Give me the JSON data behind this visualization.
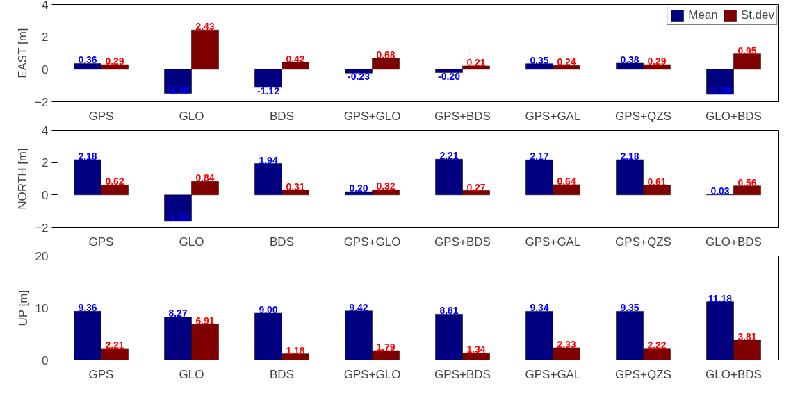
{
  "chart_data": [
    {
      "type": "bar",
      "ylabel": "EAST [m]",
      "categories": [
        "GPS",
        "GLO",
        "BDS",
        "GPS+GLO",
        "GPS+BDS",
        "GPS+GAL",
        "GPS+QZS",
        "GLO+BDS"
      ],
      "ylim": [
        -2,
        4
      ],
      "yticks": [
        -2,
        0,
        2,
        4
      ],
      "legend": "top right",
      "grid": false,
      "series": [
        {
          "name": "Mean",
          "color": "#000080",
          "values": [
            0.36,
            -1.49,
            -1.12,
            -0.23,
            -0.2,
            0.35,
            0.38,
            -1.55
          ],
          "value_labels": [
            "0.36",
            "-1.49",
            "-1.12",
            "-0.23",
            "-0.20",
            "0.35",
            "0.38",
            "-1.55"
          ]
        },
        {
          "name": "St.dev",
          "color": "#800000",
          "values": [
            0.29,
            2.43,
            0.42,
            0.68,
            0.21,
            0.24,
            0.29,
            0.95
          ],
          "value_labels": [
            "0.29",
            "2.43",
            "0.42",
            "0.68",
            "0.21",
            "0.24",
            "0.29",
            "0.95"
          ]
        }
      ]
    },
    {
      "type": "bar",
      "ylabel": "NORTH [m]",
      "categories": [
        "GPS",
        "GLO",
        "BDS",
        "GPS+GLO",
        "GPS+BDS",
        "GPS+GAL",
        "GPS+QZS",
        "GLO+BDS"
      ],
      "ylim": [
        -2,
        4
      ],
      "yticks": [
        -2,
        0,
        2,
        4
      ],
      "grid": false,
      "series": [
        {
          "color": "#000080",
          "values": [
            2.18,
            -1.63,
            1.94,
            0.2,
            2.21,
            2.17,
            2.18,
            0.03
          ],
          "value_labels": [
            "2.18",
            "-1.63",
            "1.94",
            "0.20",
            "2.21",
            "2.17",
            "2.18",
            "0.03"
          ]
        },
        {
          "color": "#800000",
          "values": [
            0.62,
            0.84,
            0.31,
            0.32,
            0.27,
            0.64,
            0.61,
            0.56
          ],
          "value_labels": [
            "0.62",
            "0.84",
            "0.31",
            "0.32",
            "0.27",
            "0.64",
            "0.61",
            "0.56"
          ]
        }
      ]
    },
    {
      "type": "bar",
      "ylabel": "UP [m]",
      "categories": [
        "GPS",
        "GLO",
        "BDS",
        "GPS+GLO",
        "GPS+BDS",
        "GPS+GAL",
        "GPS+QZS",
        "GLO+BDS"
      ],
      "ylim": [
        0,
        20
      ],
      "yticks": [
        0,
        10,
        20
      ],
      "grid": false,
      "series": [
        {
          "color": "#000080",
          "values": [
            9.36,
            8.27,
            9.0,
            9.42,
            8.81,
            9.34,
            9.35,
            11.18
          ],
          "value_labels": [
            "9.36",
            "8.27",
            "9.00",
            "9.42",
            "8.81",
            "9.34",
            "9.35",
            "11.18"
          ]
        },
        {
          "color": "#800000",
          "values": [
            2.21,
            6.91,
            1.18,
            1.79,
            1.34,
            2.33,
            2.22,
            3.81
          ],
          "value_labels": [
            "2.21",
            "6.91",
            "1.18",
            "1.79",
            "1.34",
            "2.33",
            "2.22",
            "3.81"
          ]
        }
      ]
    }
  ]
}
